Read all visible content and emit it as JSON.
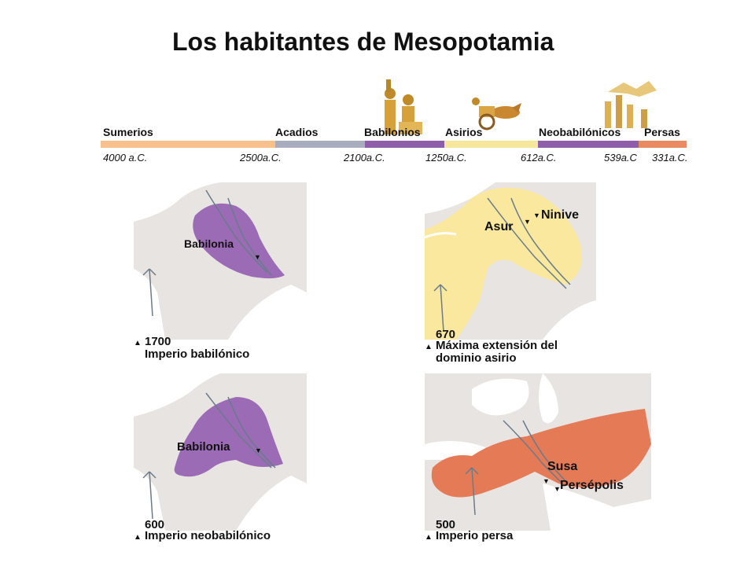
{
  "title": "Los habitantes de Mesopotamia",
  "timeline": {
    "eras": [
      {
        "label": "Sumerios",
        "color": "#f7c08d"
      },
      {
        "label": "Acadios",
        "color": "#a7adbe"
      },
      {
        "label": "Babilonios",
        "color": "#8e5ea8"
      },
      {
        "label": "Asirios",
        "color": "#f6e79a"
      },
      {
        "label": "Neobabilónicos",
        "color": "#8e5ea8"
      },
      {
        "label": "Persas",
        "color": "#e98a63"
      }
    ],
    "dates": [
      "4000 a.C.",
      "2500a.C.",
      "2100a.C.",
      "1250a.C.",
      "612a.C.",
      "539a.C",
      "331a.C."
    ]
  },
  "maps": [
    {
      "year": "1700",
      "caption": "Imperio babilónico",
      "city_labels": [
        "Babilonia"
      ],
      "color": "#9b6bb5"
    },
    {
      "year": "670",
      "caption_line1": "Máxima extensión del",
      "caption_line2": "dominio asirio",
      "city_labels": [
        "Asur",
        "Ninive"
      ],
      "color": "#f9e89d"
    },
    {
      "year": "600",
      "caption": "Imperio neobabilónico",
      "city_labels": [
        "Babilonia"
      ],
      "color": "#9b6bb5"
    },
    {
      "year": "500",
      "caption": "Imperio persa",
      "city_labels": [
        "Susa",
        "Persépolis"
      ],
      "color": "#e57a57"
    }
  ],
  "icons": {
    "triangle": "▲",
    "marker": "▼"
  }
}
